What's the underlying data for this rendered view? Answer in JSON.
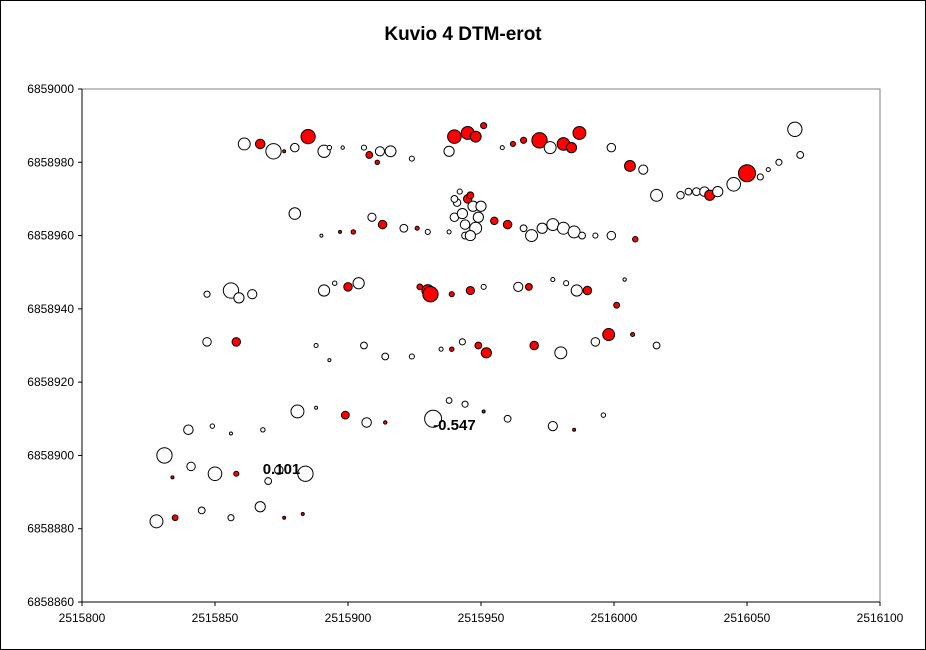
{
  "chart_data": {
    "type": "scatter",
    "title": "Kuvio 4 DTM-erot",
    "xlabel": "",
    "ylabel": "",
    "xlim": [
      2515800,
      2516100
    ],
    "ylim": [
      6858860,
      6859000
    ],
    "xticks": [
      "2515800",
      "2515850",
      "2515900",
      "2515950",
      "2516000",
      "2516050",
      "2516100"
    ],
    "yticks": [
      "6858860",
      "6858880",
      "6858900",
      "6858920",
      "6858940",
      "6858960",
      "6858980",
      "6859000"
    ],
    "grid": false,
    "legend": "none",
    "colors": {
      "positive": "#ff0000",
      "negative": "#ffffff",
      "outline": "#000000",
      "plot_border": "#808080"
    },
    "data_labels": [
      {
        "text": "0.101",
        "x": 2515875,
        "y": 6858895
      },
      {
        "text": "-0.547",
        "x": 2515940,
        "y": 6858907
      }
    ],
    "points": [
      [
        2515861,
        6858985,
        0.35,
        "w"
      ],
      [
        2515867,
        6858985,
        0.28,
        "r"
      ],
      [
        2515872,
        6858983,
        0.45,
        "w"
      ],
      [
        2515880,
        6858984,
        0.25,
        "w"
      ],
      [
        2515885,
        6858987,
        0.42,
        "r"
      ],
      [
        2515891,
        6858983,
        0.36,
        "w"
      ],
      [
        2515893,
        6858984,
        0.13,
        "w"
      ],
      [
        2515898,
        6858984,
        0.1,
        "w"
      ],
      [
        2515906,
        6858984,
        0.15,
        "w"
      ],
      [
        2515908,
        6858982,
        0.2,
        "r"
      ],
      [
        2515911,
        6858980,
        0.13,
        "r"
      ],
      [
        2515912,
        6858983,
        0.27,
        "w"
      ],
      [
        2515916,
        6858983,
        0.32,
        "w"
      ],
      [
        2515924,
        6858981,
        0.15,
        "w"
      ],
      [
        2515876,
        6858983,
        0.06,
        "r"
      ],
      [
        2515940,
        6858987,
        0.4,
        "r"
      ],
      [
        2515945,
        6858988,
        0.38,
        "r"
      ],
      [
        2515948,
        6858987,
        0.32,
        "r"
      ],
      [
        2515951,
        6858990,
        0.18,
        "r"
      ],
      [
        2515938,
        6858983,
        0.3,
        "w"
      ],
      [
        2515958,
        6858984,
        0.12,
        "w"
      ],
      [
        2515962,
        6858985,
        0.15,
        "r"
      ],
      [
        2515966,
        6858986,
        0.18,
        "r"
      ],
      [
        2515972,
        6858986,
        0.45,
        "r"
      ],
      [
        2515976,
        6858984,
        0.35,
        "w"
      ],
      [
        2515981,
        6858985,
        0.37,
        "r"
      ],
      [
        2515984,
        6858984,
        0.3,
        "r"
      ],
      [
        2515987,
        6858988,
        0.38,
        "r"
      ],
      [
        2515999,
        6858984,
        0.25,
        "w"
      ],
      [
        2516006,
        6858979,
        0.32,
        "r"
      ],
      [
        2516011,
        6858978,
        0.27,
        "w"
      ],
      [
        2516016,
        6858971,
        0.35,
        "w"
      ],
      [
        2516025,
        6858971,
        0.22,
        "w"
      ],
      [
        2516028,
        6858972,
        0.2,
        "w"
      ],
      [
        2516031,
        6858972,
        0.23,
        "w"
      ],
      [
        2516034,
        6858972,
        0.28,
        "w"
      ],
      [
        2516036,
        6858971,
        0.3,
        "r"
      ],
      [
        2516039,
        6858972,
        0.3,
        "w"
      ],
      [
        2516045,
        6858974,
        0.4,
        "w"
      ],
      [
        2516050,
        6858977,
        0.5,
        "r"
      ],
      [
        2516055,
        6858976,
        0.18,
        "w"
      ],
      [
        2516058,
        6858978,
        0.12,
        "w"
      ],
      [
        2516062,
        6858980,
        0.18,
        "w"
      ],
      [
        2516068,
        6858989,
        0.42,
        "w"
      ],
      [
        2516070,
        6858982,
        0.2,
        "w"
      ],
      [
        2515880,
        6858966,
        0.34,
        "w"
      ],
      [
        2515890,
        6858960,
        0.07,
        "w"
      ],
      [
        2515897,
        6858961,
        0.04,
        "r"
      ],
      [
        2515902,
        6858961,
        0.13,
        "r"
      ],
      [
        2515909,
        6858965,
        0.24,
        "w"
      ],
      [
        2515913,
        6858963,
        0.25,
        "r"
      ],
      [
        2515921,
        6858962,
        0.23,
        "w"
      ],
      [
        2515926,
        6858962,
        0.12,
        "r"
      ],
      [
        2515930,
        6858961,
        0.15,
        "w"
      ],
      [
        2515938,
        6858961,
        0.12,
        "w"
      ],
      [
        2515940,
        6858965,
        0.25,
        "w"
      ],
      [
        2515941,
        6858969,
        0.22,
        "w"
      ],
      [
        2515943,
        6858966,
        0.3,
        "w"
      ],
      [
        2515944,
        6858963,
        0.28,
        "w"
      ],
      [
        2515945,
        6858970,
        0.25,
        "r"
      ],
      [
        2515946,
        6858971,
        0.2,
        "r"
      ],
      [
        2515947,
        6858968,
        0.3,
        "w"
      ],
      [
        2515948,
        6858962,
        0.35,
        "w"
      ],
      [
        2515949,
        6858965,
        0.3,
        "w"
      ],
      [
        2515940,
        6858970,
        0.2,
        "w"
      ],
      [
        2515942,
        6858972,
        0.15,
        "w"
      ],
      [
        2515944,
        6858960,
        0.2,
        "w"
      ],
      [
        2515946,
        6858960,
        0.3,
        "w"
      ],
      [
        2515950,
        6858968,
        0.3,
        "w"
      ],
      [
        2515955,
        6858964,
        0.22,
        "r"
      ],
      [
        2515960,
        6858963,
        0.25,
        "r"
      ],
      [
        2515966,
        6858962,
        0.2,
        "w"
      ],
      [
        2515969,
        6858960,
        0.35,
        "w"
      ],
      [
        2515973,
        6858962,
        0.3,
        "w"
      ],
      [
        2515977,
        6858963,
        0.35,
        "w"
      ],
      [
        2515981,
        6858962,
        0.35,
        "w"
      ],
      [
        2515985,
        6858961,
        0.35,
        "w"
      ],
      [
        2515988,
        6858960,
        0.2,
        "w"
      ],
      [
        2515993,
        6858960,
        0.15,
        "w"
      ],
      [
        2515999,
        6858960,
        0.25,
        "w"
      ],
      [
        2516008,
        6858959,
        0.16,
        "r"
      ],
      [
        2515847,
        6858944,
        0.18,
        "w"
      ],
      [
        2515856,
        6858945,
        0.45,
        "w"
      ],
      [
        2515859,
        6858943,
        0.3,
        "w"
      ],
      [
        2515864,
        6858944,
        0.27,
        "w"
      ],
      [
        2515891,
        6858945,
        0.33,
        "w"
      ],
      [
        2515895,
        6858947,
        0.13,
        "w"
      ],
      [
        2515900,
        6858946,
        0.25,
        "r"
      ],
      [
        2515904,
        6858947,
        0.33,
        "w"
      ],
      [
        2515927,
        6858946,
        0.17,
        "r"
      ],
      [
        2515930,
        6858945,
        0.35,
        "r"
      ],
      [
        2515931,
        6858944,
        0.45,
        "r"
      ],
      [
        2515939,
        6858944,
        0.15,
        "r"
      ],
      [
        2515946,
        6858945,
        0.24,
        "r"
      ],
      [
        2515951,
        6858946,
        0.15,
        "w"
      ],
      [
        2515964,
        6858946,
        0.27,
        "w"
      ],
      [
        2515968,
        6858946,
        0.2,
        "r"
      ],
      [
        2515977,
        6858948,
        0.12,
        "w"
      ],
      [
        2515982,
        6858947,
        0.15,
        "w"
      ],
      [
        2515986,
        6858945,
        0.33,
        "w"
      ],
      [
        2515990,
        6858945,
        0.25,
        "r"
      ],
      [
        2516004,
        6858948,
        0.1,
        "w"
      ],
      [
        2516001,
        6858941,
        0.17,
        "r"
      ],
      [
        2515847,
        6858931,
        0.25,
        "w"
      ],
      [
        2515858,
        6858931,
        0.25,
        "r"
      ],
      [
        2515888,
        6858930,
        0.12,
        "w"
      ],
      [
        2515893,
        6858926,
        0.08,
        "w"
      ],
      [
        2515906,
        6858930,
        0.2,
        "w"
      ],
      [
        2515914,
        6858927,
        0.2,
        "w"
      ],
      [
        2515924,
        6858927,
        0.15,
        "w"
      ],
      [
        2515935,
        6858929,
        0.12,
        "w"
      ],
      [
        2515939,
        6858929,
        0.13,
        "r"
      ],
      [
        2515943,
        6858931,
        0.18,
        "w"
      ],
      [
        2515949,
        6858930,
        0.2,
        "r"
      ],
      [
        2515952,
        6858928,
        0.3,
        "r"
      ],
      [
        2515970,
        6858930,
        0.25,
        "r"
      ],
      [
        2515980,
        6858928,
        0.35,
        "w"
      ],
      [
        2515993,
        6858931,
        0.25,
        "w"
      ],
      [
        2515998,
        6858933,
        0.35,
        "r"
      ],
      [
        2516007,
        6858933,
        0.12,
        "r"
      ],
      [
        2516016,
        6858930,
        0.2,
        "w"
      ],
      [
        2515840,
        6858907,
        0.28,
        "w"
      ],
      [
        2515849,
        6858908,
        0.13,
        "w"
      ],
      [
        2515856,
        6858906,
        0.06,
        "w"
      ],
      [
        2515868,
        6858907,
        0.13,
        "w"
      ],
      [
        2515881,
        6858912,
        0.38,
        "w"
      ],
      [
        2515888,
        6858913,
        0.06,
        "w"
      ],
      [
        2515899,
        6858911,
        0.23,
        "r"
      ],
      [
        2515907,
        6858909,
        0.28,
        "w"
      ],
      [
        2515914,
        6858909,
        0.1,
        "r"
      ],
      [
        2515932,
        6858910,
        0.5,
        "w"
      ],
      [
        2515938,
        6858915,
        0.17,
        "w"
      ],
      [
        2515944,
        6858914,
        0.18,
        "w"
      ],
      [
        2515951,
        6858912,
        0.08,
        "r"
      ],
      [
        2515960,
        6858910,
        0.2,
        "w"
      ],
      [
        2515977,
        6858908,
        0.27,
        "w"
      ],
      [
        2515985,
        6858907,
        0.08,
        "r"
      ],
      [
        2515996,
        6858911,
        0.13,
        "w"
      ],
      [
        2515831,
        6858900,
        0.45,
        "w"
      ],
      [
        2515841,
        6858897,
        0.25,
        "w"
      ],
      [
        2515834,
        6858894,
        0.05,
        "r"
      ],
      [
        2515850,
        6858895,
        0.4,
        "w"
      ],
      [
        2515858,
        6858895,
        0.15,
        "r"
      ],
      [
        2515870,
        6858893,
        0.2,
        "w"
      ],
      [
        2515874,
        6858896,
        0.25,
        "w"
      ],
      [
        2515884,
        6858895,
        0.45,
        "w"
      ],
      [
        2515828,
        6858882,
        0.38,
        "w"
      ],
      [
        2515835,
        6858883,
        0.17,
        "r"
      ],
      [
        2515845,
        6858885,
        0.2,
        "w"
      ],
      [
        2515856,
        6858883,
        0.18,
        "w"
      ],
      [
        2515867,
        6858886,
        0.3,
        "w"
      ],
      [
        2515876,
        6858883,
        0.07,
        "r"
      ],
      [
        2515883,
        6858884,
        0.05,
        "r"
      ]
    ]
  }
}
